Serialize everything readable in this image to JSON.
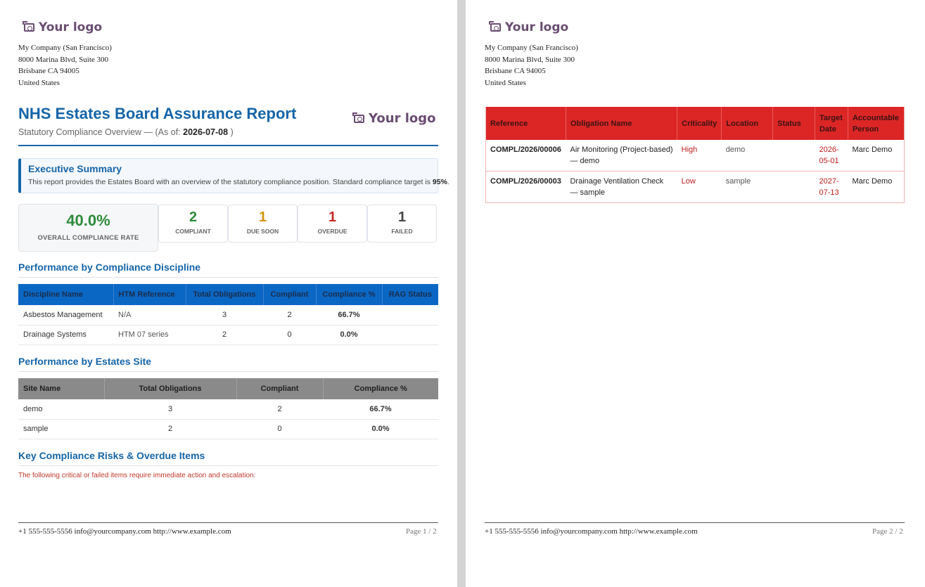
{
  "company": {
    "logo_text": "Your logo",
    "name": "My Company (San Francisco)",
    "street": "8000 Marina Blvd, Suite 300",
    "city": "Brisbane CA 94005",
    "country": "United States"
  },
  "report": {
    "title": "NHS Estates Board Assurance Report",
    "subtitle_prefix": "Statutory Compliance Overview — (As of:",
    "as_of": "2026-07-08",
    "subtitle_suffix": ")"
  },
  "executive_summary": {
    "title": "Executive Summary",
    "text": "This report provides the Estates Board with an overview of the statutory compliance position. Standard compliance target is",
    "target": "95%",
    "text_end": "."
  },
  "kpis": {
    "overall": {
      "value": "40.0%",
      "label": "OVERALL COMPLIANCE RATE",
      "color": "#2e8b3a"
    },
    "compliant": {
      "value": "2",
      "label": "COMPLIANT",
      "color": "#2e8b3a"
    },
    "due_soon": {
      "value": "1",
      "label": "DUE SOON",
      "color": "#d4920b"
    },
    "overdue": {
      "value": "1",
      "label": "OVERDUE",
      "color": "#c62828"
    },
    "failed": {
      "value": "1",
      "label": "FAILED",
      "color": "#444444"
    }
  },
  "discipline": {
    "title": "Performance by Compliance Discipline",
    "headers": [
      "Discipline Name",
      "HTM Reference",
      "Total Obligations",
      "Compliant",
      "Compliance %",
      "RAG Status"
    ],
    "rows": [
      {
        "name": "Asbestos Management",
        "htm": "N/A",
        "total": "3",
        "compliant": "2",
        "pct": "66.7%",
        "rag": ""
      },
      {
        "name": "Drainage Systems",
        "htm": "HTM 07 series",
        "total": "2",
        "compliant": "0",
        "pct": "0.0%",
        "rag": ""
      }
    ]
  },
  "site": {
    "title": "Performance by Estates Site",
    "headers": [
      "Site Name",
      "Total Obligations",
      "Compliant",
      "Compliance %"
    ],
    "rows": [
      {
        "name": "demo",
        "total": "3",
        "compliant": "2",
        "pct": "66.7%"
      },
      {
        "name": "sample",
        "total": "2",
        "compliant": "0",
        "pct": "0.0%"
      }
    ]
  },
  "risks": {
    "title": "Key Compliance Risks & Overdue Items",
    "note": "The following critical or failed items require immediate action and escalation:",
    "headers": [
      "Reference",
      "Obligation Name",
      "Criticality",
      "Location",
      "Status",
      "Target Date",
      "Accountable Person"
    ],
    "rows": [
      {
        "ref": "COMPL/2026/00006",
        "name": "Air Monitoring (Project-based) — demo",
        "crit": "High",
        "loc": "demo",
        "status": "",
        "date": "2026-05-01",
        "person": "Marc Demo"
      },
      {
        "ref": "COMPL/2026/00003",
        "name": "Drainage Ventilation Check — sample",
        "crit": "Low",
        "loc": "sample",
        "status": "",
        "date": "2027-07-13",
        "person": "Marc Demo"
      }
    ]
  },
  "footer": {
    "contact": "+1 555-555-5556 info@yourcompany.com http://www.example.com",
    "page1": "Page 1 / 2",
    "page2": "Page 2 / 2"
  }
}
